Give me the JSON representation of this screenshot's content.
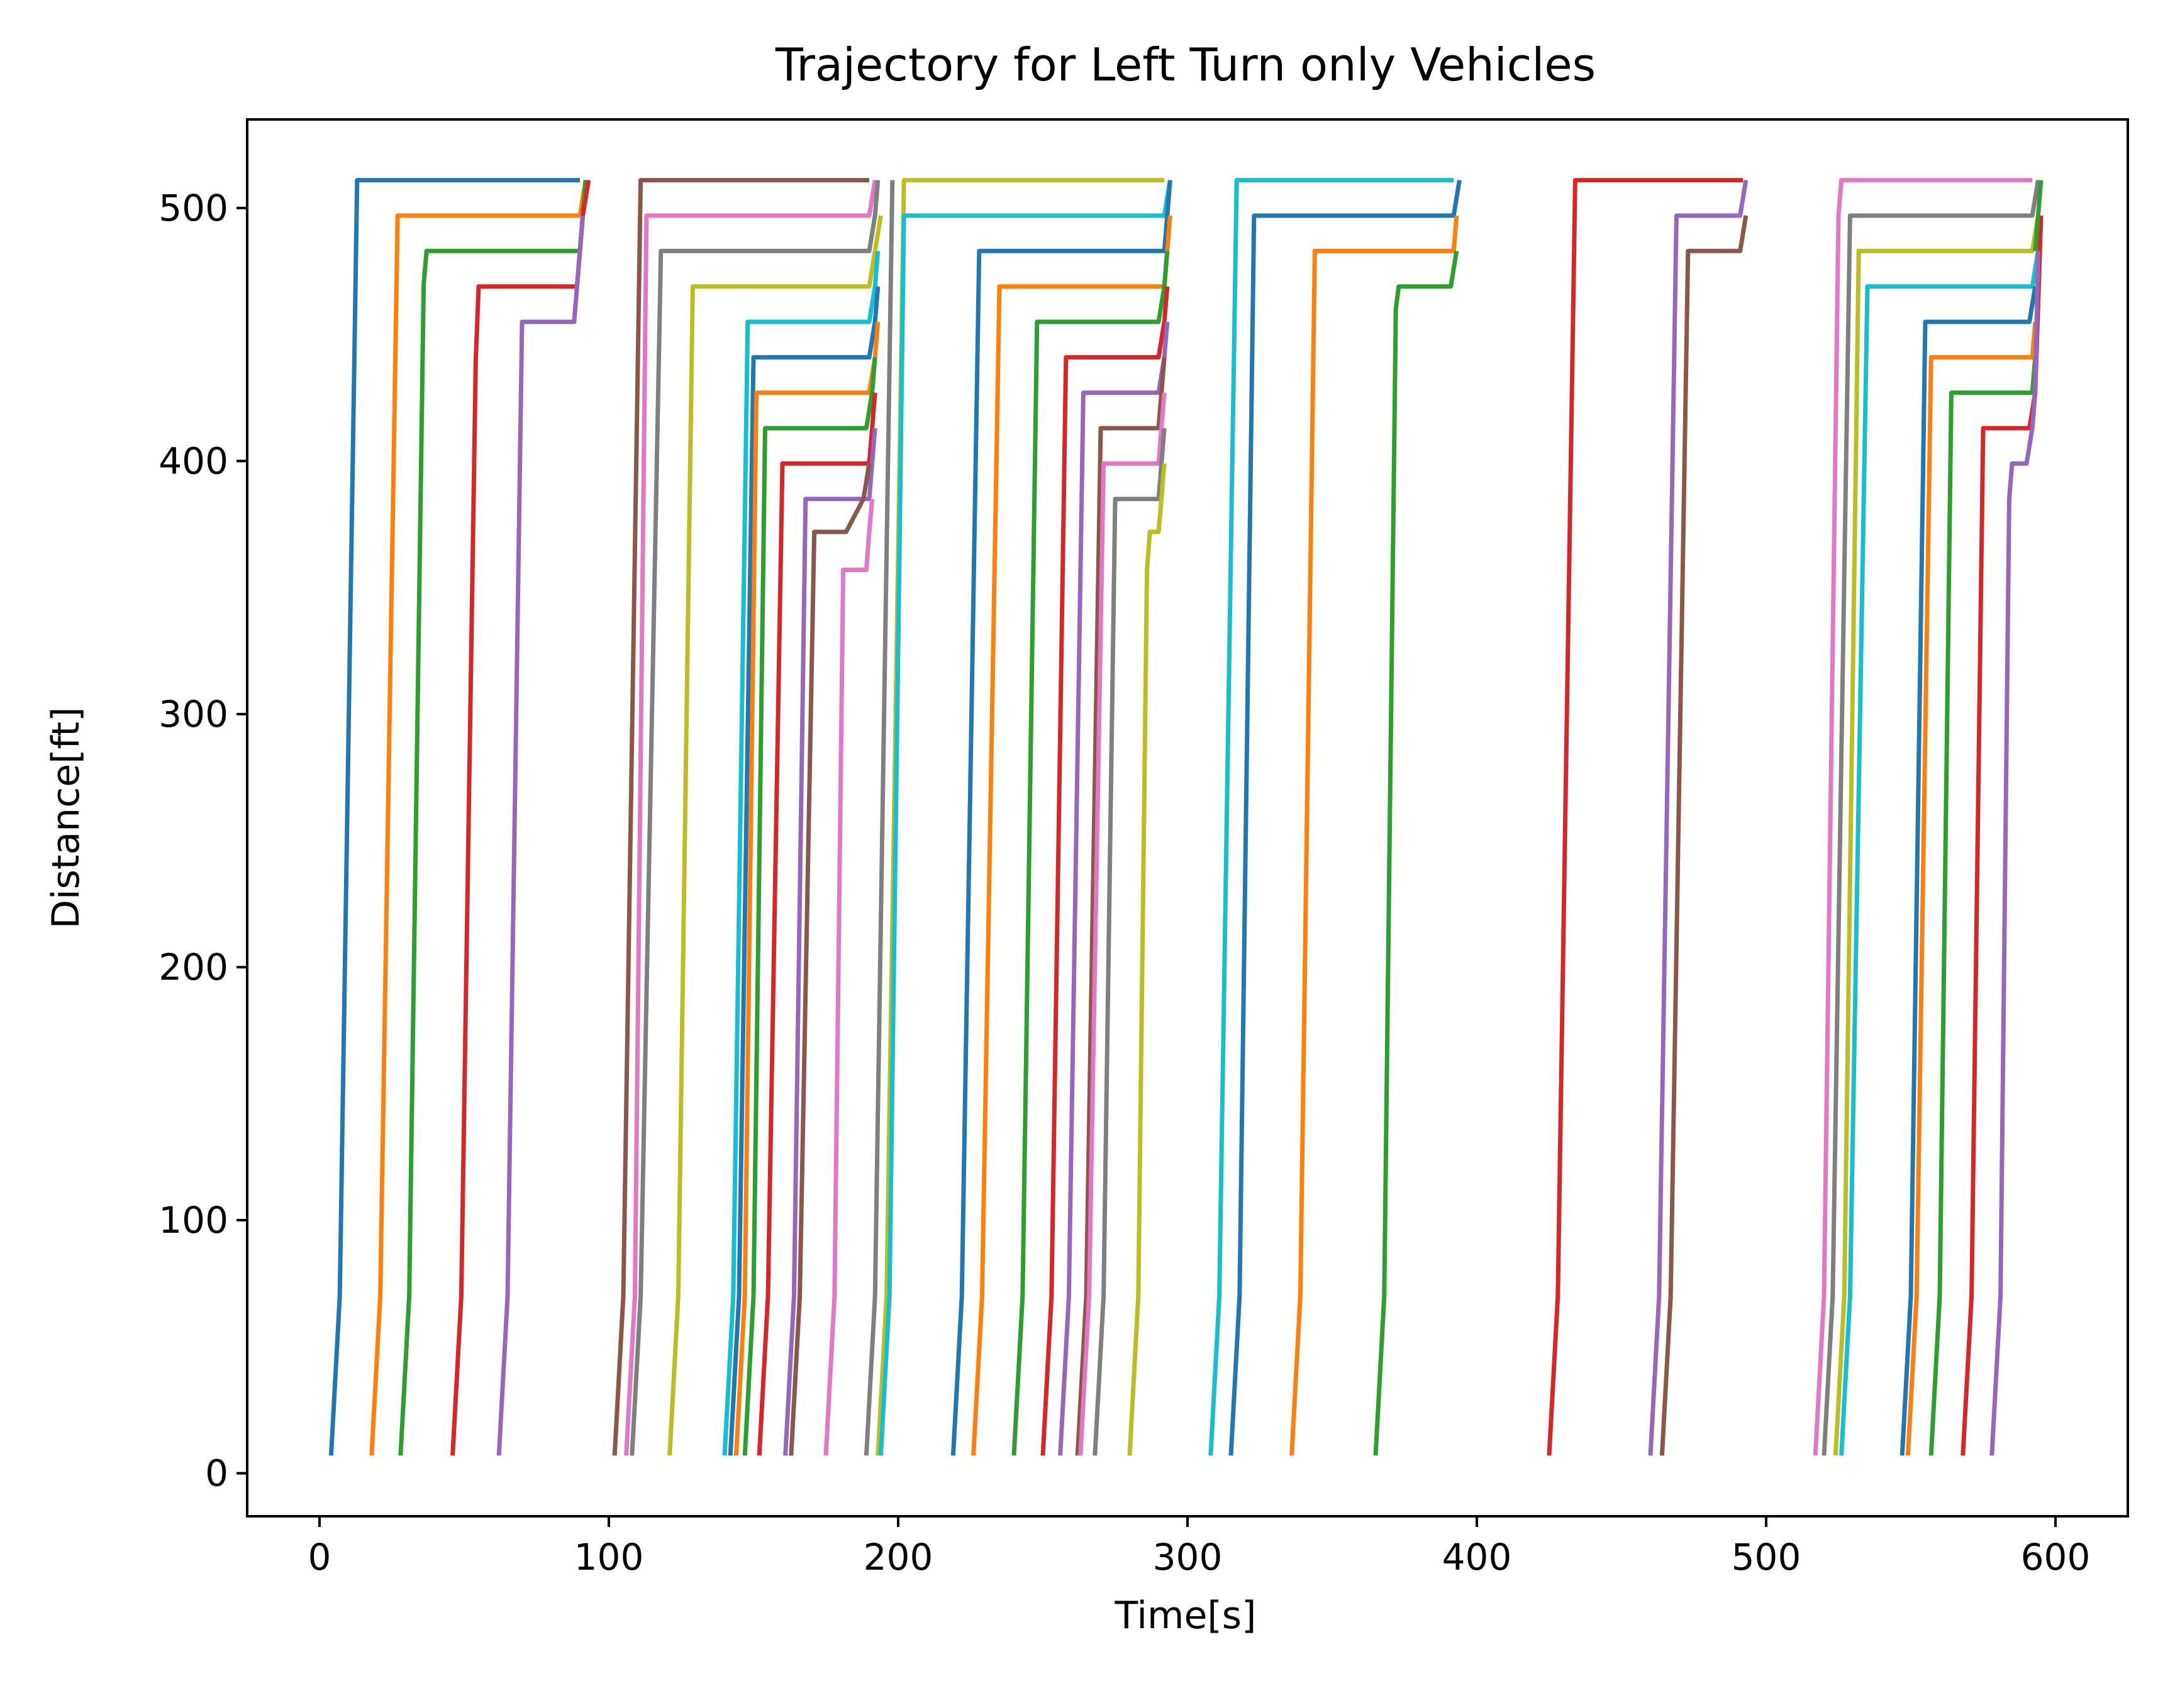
{
  "chart_data": {
    "type": "line",
    "title": "Trajectory for Left Turn only Vehicles",
    "xlabel": "Time[s]",
    "ylabel": "Distance[ft]",
    "xlim": [
      -25,
      625
    ],
    "ylim": [
      -17,
      535
    ],
    "xticks": [
      0,
      100,
      200,
      300,
      400,
      500,
      600
    ],
    "yticks": [
      0,
      100,
      200,
      300,
      400,
      500
    ],
    "grid": false,
    "legend": "none",
    "colors": [
      "#1f77b4",
      "#ff7f0e",
      "#2ca02c",
      "#d62728",
      "#9467bd",
      "#8c564b",
      "#e377c2",
      "#7f7f7f",
      "#bcbd22",
      "#17becf"
    ],
    "series": [
      {
        "color": "#1f77b4",
        "points": [
          [
            4,
            7
          ],
          [
            7,
            70
          ],
          [
            13,
            511
          ],
          [
            90,
            511
          ]
        ]
      },
      {
        "color": "#ff7f0e",
        "points": [
          [
            18,
            7
          ],
          [
            21,
            70
          ],
          [
            27,
            497
          ],
          [
            90,
            497
          ],
          [
            92,
            511
          ]
        ]
      },
      {
        "color": "#2ca02c",
        "points": [
          [
            28,
            7
          ],
          [
            31,
            70
          ],
          [
            36,
            470
          ],
          [
            37,
            483
          ],
          [
            90,
            483
          ],
          [
            92,
            511
          ]
        ]
      },
      {
        "color": "#d62728",
        "points": [
          [
            46,
            7
          ],
          [
            49,
            70
          ],
          [
            54,
            440
          ],
          [
            55,
            469
          ],
          [
            89,
            469
          ],
          [
            91,
            497
          ],
          [
            93,
            511
          ]
        ]
      },
      {
        "color": "#9467bd",
        "points": [
          [
            62,
            7
          ],
          [
            65,
            70
          ],
          [
            70,
            455
          ],
          [
            88,
            455
          ],
          [
            90,
            483
          ],
          [
            91,
            497
          ]
        ]
      },
      {
        "color": "#8c564b",
        "points": [
          [
            102,
            7
          ],
          [
            105,
            70
          ],
          [
            111,
            511
          ],
          [
            190,
            511
          ]
        ]
      },
      {
        "color": "#e377c2",
        "points": [
          [
            106,
            7
          ],
          [
            109,
            70
          ],
          [
            113,
            497
          ],
          [
            190,
            497
          ],
          [
            192,
            511
          ]
        ]
      },
      {
        "color": "#7f7f7f",
        "points": [
          [
            108,
            7
          ],
          [
            111,
            70
          ],
          [
            118,
            483
          ],
          [
            190,
            483
          ],
          [
            192,
            497
          ],
          [
            193,
            511
          ]
        ]
      },
      {
        "color": "#bcbd22",
        "points": [
          [
            121,
            7
          ],
          [
            124,
            70
          ],
          [
            129,
            469
          ],
          [
            190,
            469
          ],
          [
            192,
            483
          ],
          [
            194,
            497
          ]
        ]
      },
      {
        "color": "#17becf",
        "points": [
          [
            140,
            7
          ],
          [
            143,
            70
          ],
          [
            148,
            455
          ],
          [
            190,
            455
          ],
          [
            192,
            469
          ],
          [
            193,
            483
          ]
        ]
      },
      {
        "color": "#1f77b4",
        "points": [
          [
            142,
            7
          ],
          [
            145,
            70
          ],
          [
            150,
            441
          ],
          [
            190,
            441
          ],
          [
            192,
            455
          ],
          [
            193,
            469
          ]
        ]
      },
      {
        "color": "#ff7f0e",
        "points": [
          [
            144,
            7
          ],
          [
            147,
            70
          ],
          [
            151,
            427
          ],
          [
            190,
            427
          ],
          [
            192,
            441
          ],
          [
            193,
            455
          ]
        ]
      },
      {
        "color": "#2ca02c",
        "points": [
          [
            147,
            7
          ],
          [
            150,
            70
          ],
          [
            154,
            413
          ],
          [
            189,
            413
          ],
          [
            191,
            427
          ],
          [
            192,
            441
          ]
        ]
      },
      {
        "color": "#d62728",
        "points": [
          [
            152,
            7
          ],
          [
            155,
            70
          ],
          [
            160,
            399
          ],
          [
            190,
            399
          ],
          [
            191,
            413
          ],
          [
            192,
            427
          ]
        ]
      },
      {
        "color": "#9467bd",
        "points": [
          [
            161,
            7
          ],
          [
            164,
            70
          ],
          [
            168,
            385
          ],
          [
            190,
            385
          ],
          [
            191,
            399
          ],
          [
            192,
            413
          ]
        ]
      },
      {
        "color": "#8c564b",
        "points": [
          [
            163,
            7
          ],
          [
            166,
            70
          ],
          [
            171,
            372
          ],
          [
            182,
            372
          ],
          [
            188,
            385
          ],
          [
            190,
            399
          ]
        ]
      },
      {
        "color": "#e377c2",
        "points": [
          [
            175,
            7
          ],
          [
            178,
            70
          ],
          [
            181,
            357
          ],
          [
            189,
            357
          ],
          [
            190,
            372
          ],
          [
            191,
            385
          ]
        ]
      },
      {
        "color": "#7f7f7f",
        "points": [
          [
            189,
            7
          ],
          [
            192,
            70
          ],
          [
            198,
            511
          ]
        ]
      },
      {
        "color": "#bcbd22",
        "points": [
          [
            193,
            7
          ],
          [
            196,
            70
          ],
          [
            202,
            511
          ],
          [
            292,
            511
          ]
        ]
      },
      {
        "color": "#17becf",
        "points": [
          [
            194,
            7
          ],
          [
            197,
            70
          ],
          [
            202,
            497
          ],
          [
            292,
            497
          ],
          [
            294,
            511
          ]
        ]
      },
      {
        "color": "#1f77b4",
        "points": [
          [
            219,
            7
          ],
          [
            222,
            70
          ],
          [
            228,
            483
          ],
          [
            292,
            483
          ],
          [
            293,
            497
          ],
          [
            294,
            511
          ]
        ]
      },
      {
        "color": "#ff7f0e",
        "points": [
          [
            226,
            7
          ],
          [
            229,
            70
          ],
          [
            235,
            469
          ],
          [
            292,
            469
          ],
          [
            293,
            483
          ],
          [
            294,
            497
          ]
        ]
      },
      {
        "color": "#2ca02c",
        "points": [
          [
            240,
            7
          ],
          [
            243,
            70
          ],
          [
            248,
            455
          ],
          [
            290,
            455
          ],
          [
            292,
            469
          ],
          [
            293,
            483
          ]
        ]
      },
      {
        "color": "#d62728",
        "points": [
          [
            250,
            7
          ],
          [
            253,
            70
          ],
          [
            258,
            441
          ],
          [
            290,
            441
          ],
          [
            292,
            455
          ],
          [
            293,
            469
          ]
        ]
      },
      {
        "color": "#9467bd",
        "points": [
          [
            256,
            7
          ],
          [
            259,
            70
          ],
          [
            264,
            427
          ],
          [
            290,
            427
          ],
          [
            292,
            441
          ],
          [
            293,
            455
          ]
        ]
      },
      {
        "color": "#8c564b",
        "points": [
          [
            262,
            7
          ],
          [
            265,
            70
          ],
          [
            270,
            413
          ],
          [
            290,
            413
          ],
          [
            291,
            427
          ],
          [
            292,
            441
          ]
        ]
      },
      {
        "color": "#e377c2",
        "points": [
          [
            263,
            7
          ],
          [
            266,
            70
          ],
          [
            271,
            399
          ],
          [
            290,
            399
          ],
          [
            291,
            413
          ],
          [
            292,
            427
          ]
        ]
      },
      {
        "color": "#7f7f7f",
        "points": [
          [
            268,
            7
          ],
          [
            271,
            70
          ],
          [
            275,
            385
          ],
          [
            290,
            385
          ],
          [
            291,
            399
          ],
          [
            292,
            413
          ]
        ]
      },
      {
        "color": "#bcbd22",
        "points": [
          [
            280,
            7
          ],
          [
            283,
            70
          ],
          [
            286,
            357
          ],
          [
            287,
            372
          ],
          [
            290,
            372
          ],
          [
            291,
            385
          ],
          [
            292,
            399
          ]
        ]
      },
      {
        "color": "#17becf",
        "points": [
          [
            308,
            7
          ],
          [
            311,
            70
          ],
          [
            317,
            511
          ],
          [
            392,
            511
          ]
        ]
      },
      {
        "color": "#1f77b4",
        "points": [
          [
            315,
            7
          ],
          [
            318,
            70
          ],
          [
            323,
            497
          ],
          [
            392,
            497
          ],
          [
            394,
            511
          ]
        ]
      },
      {
        "color": "#ff7f0e",
        "points": [
          [
            336,
            7
          ],
          [
            339,
            70
          ],
          [
            344,
            483
          ],
          [
            392,
            483
          ],
          [
            393,
            497
          ]
        ]
      },
      {
        "color": "#2ca02c",
        "points": [
          [
            365,
            7
          ],
          [
            368,
            70
          ],
          [
            372,
            460
          ],
          [
            373,
            469
          ],
          [
            391,
            469
          ],
          [
            393,
            483
          ]
        ]
      },
      {
        "color": "#d62728",
        "points": [
          [
            425,
            7
          ],
          [
            428,
            70
          ],
          [
            434,
            511
          ],
          [
            492,
            511
          ]
        ]
      },
      {
        "color": "#9467bd",
        "points": [
          [
            460,
            7
          ],
          [
            463,
            70
          ],
          [
            469,
            497
          ],
          [
            491,
            497
          ],
          [
            493,
            511
          ]
        ]
      },
      {
        "color": "#8c564b",
        "points": [
          [
            464,
            7
          ],
          [
            467,
            70
          ],
          [
            473,
            483
          ],
          [
            491,
            483
          ],
          [
            493,
            497
          ]
        ]
      },
      {
        "color": "#e377c2",
        "points": [
          [
            517,
            7
          ],
          [
            520,
            70
          ],
          [
            525,
            497
          ],
          [
            526,
            511
          ],
          [
            592,
            511
          ]
        ]
      },
      {
        "color": "#7f7f7f",
        "points": [
          [
            520,
            7
          ],
          [
            523,
            70
          ],
          [
            529,
            497
          ],
          [
            592,
            497
          ],
          [
            594,
            511
          ]
        ]
      },
      {
        "color": "#bcbd22",
        "points": [
          [
            524,
            7
          ],
          [
            527,
            70
          ],
          [
            532,
            483
          ],
          [
            592,
            483
          ],
          [
            594,
            497
          ]
        ]
      },
      {
        "color": "#17becf",
        "points": [
          [
            526,
            7
          ],
          [
            529,
            70
          ],
          [
            535,
            469
          ],
          [
            592,
            469
          ],
          [
            594,
            483
          ]
        ]
      },
      {
        "color": "#1f77b4",
        "points": [
          [
            547,
            7
          ],
          [
            550,
            70
          ],
          [
            555,
            455
          ],
          [
            591,
            455
          ],
          [
            593,
            469
          ]
        ]
      },
      {
        "color": "#ff7f0e",
        "points": [
          [
            549,
            7
          ],
          [
            552,
            70
          ],
          [
            557,
            441
          ],
          [
            592,
            441
          ],
          [
            593,
            455
          ]
        ]
      },
      {
        "color": "#2ca02c",
        "points": [
          [
            557,
            7
          ],
          [
            560,
            70
          ],
          [
            564,
            427
          ],
          [
            592,
            427
          ],
          [
            593,
            441
          ]
        ]
      },
      {
        "color": "#d62728",
        "points": [
          [
            568,
            7
          ],
          [
            571,
            70
          ],
          [
            575,
            413
          ],
          [
            591,
            413
          ],
          [
            593,
            427
          ],
          [
            595,
            497
          ]
        ]
      },
      {
        "color": "#9467bd",
        "points": [
          [
            578,
            7
          ],
          [
            581,
            70
          ],
          [
            584,
            385
          ],
          [
            585,
            399
          ],
          [
            590,
            399
          ],
          [
            592,
            413
          ],
          [
            593,
            427
          ],
          [
            594,
            483
          ]
        ]
      },
      {
        "color": "#2ca02c",
        "points": [
          [
            593,
            483
          ],
          [
            594,
            497
          ],
          [
            595,
            511
          ]
        ]
      }
    ]
  }
}
